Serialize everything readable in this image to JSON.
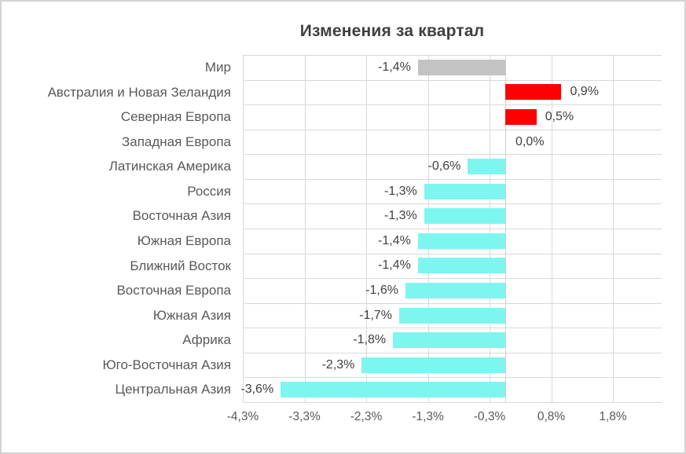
{
  "title": "Изменения за квартал",
  "colors": {
    "world_bar": "#c3c3c3",
    "positive_bar": "#ff0000",
    "negative_bar": "#7df6f0",
    "gridline": "#d9d9d9",
    "title_text": "#3f3f3f",
    "label_text": "#595959",
    "value_text": "#404040",
    "frame_border": "#d3d3d3",
    "background": "#ffffff"
  },
  "chart_data": {
    "type": "bar",
    "orientation": "horizontal",
    "title": "Изменения за квартал",
    "xlabel": "",
    "ylabel": "",
    "grid": true,
    "legend": false,
    "x_axis_unit": "%",
    "x_tick_labels": [
      "-4,3%",
      "-3,3%",
      "-2,3%",
      "-1,3%",
      "-0,3%",
      "0,8%",
      "1,8%"
    ],
    "x_axis_range_percent": [
      -4.3,
      2.5
    ],
    "categories": [
      "Мир",
      "Австралия и Новая Зеландия",
      "Северная Европа",
      "Западная Европа",
      "Латинская Америка",
      "Россия",
      "Восточная Азия",
      "Южная Европа",
      "Ближний Восток",
      "Восточная Европа",
      "Южная Азия",
      "Африка",
      "Юго-Восточная Азия",
      "Центральная Азия"
    ],
    "values": [
      -1.4,
      0.9,
      0.5,
      0.0,
      -0.6,
      -1.3,
      -1.3,
      -1.4,
      -1.4,
      -1.6,
      -1.7,
      -1.8,
      -2.3,
      -3.6
    ],
    "value_labels": [
      "-1,4%",
      "0,9%",
      "0,5%",
      "0,0%",
      "-0,6%",
      "-1,3%",
      "-1,3%",
      "-1,4%",
      "-1,4%",
      "-1,6%",
      "-1,7%",
      "-1,8%",
      "-2,3%",
      "-3,6%"
    ],
    "bar_color_keys": [
      "world_bar",
      "positive_bar",
      "positive_bar",
      "none",
      "negative_bar",
      "negative_bar",
      "negative_bar",
      "negative_bar",
      "negative_bar",
      "negative_bar",
      "negative_bar",
      "negative_bar",
      "negative_bar",
      "negative_bar"
    ]
  }
}
